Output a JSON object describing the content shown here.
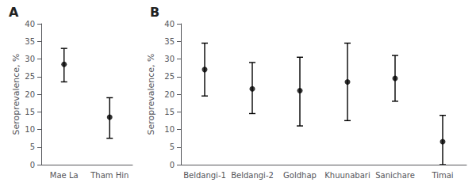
{
  "chart_data": [
    {
      "type": "scatter",
      "title": "A",
      "categories": [
        "Mae La",
        "Tham Hin"
      ],
      "values": [
        28.5,
        13.5
      ],
      "ci_low": [
        23.5,
        7.5
      ],
      "ci_high": [
        33.0,
        19.0
      ],
      "ylabel": "Seroprevalence, %",
      "ylim": [
        0,
        40
      ],
      "yticks": [
        0,
        5,
        10,
        15,
        20,
        25,
        30,
        35,
        40
      ],
      "marker": "circle",
      "color": "black",
      "grid": false
    },
    {
      "type": "scatter",
      "title": "B",
      "categories": [
        "Beldangi-1",
        "Beldangi-2",
        "Goldhap",
        "Khuunabari",
        "Sanichare",
        "Timai"
      ],
      "values": [
        27.0,
        21.5,
        21.0,
        23.5,
        24.5,
        6.5
      ],
      "ci_low": [
        19.5,
        14.5,
        11.0,
        12.5,
        18.0,
        0.0
      ],
      "ci_high": [
        34.5,
        29.0,
        30.5,
        34.5,
        31.0,
        14.0
      ],
      "ylabel": "Seroprevalence, %",
      "ylim": [
        0,
        40
      ],
      "yticks": [
        0,
        5,
        10,
        15,
        20,
        25,
        30,
        35,
        40
      ],
      "marker": "circle",
      "color": "black",
      "grid": false
    }
  ]
}
